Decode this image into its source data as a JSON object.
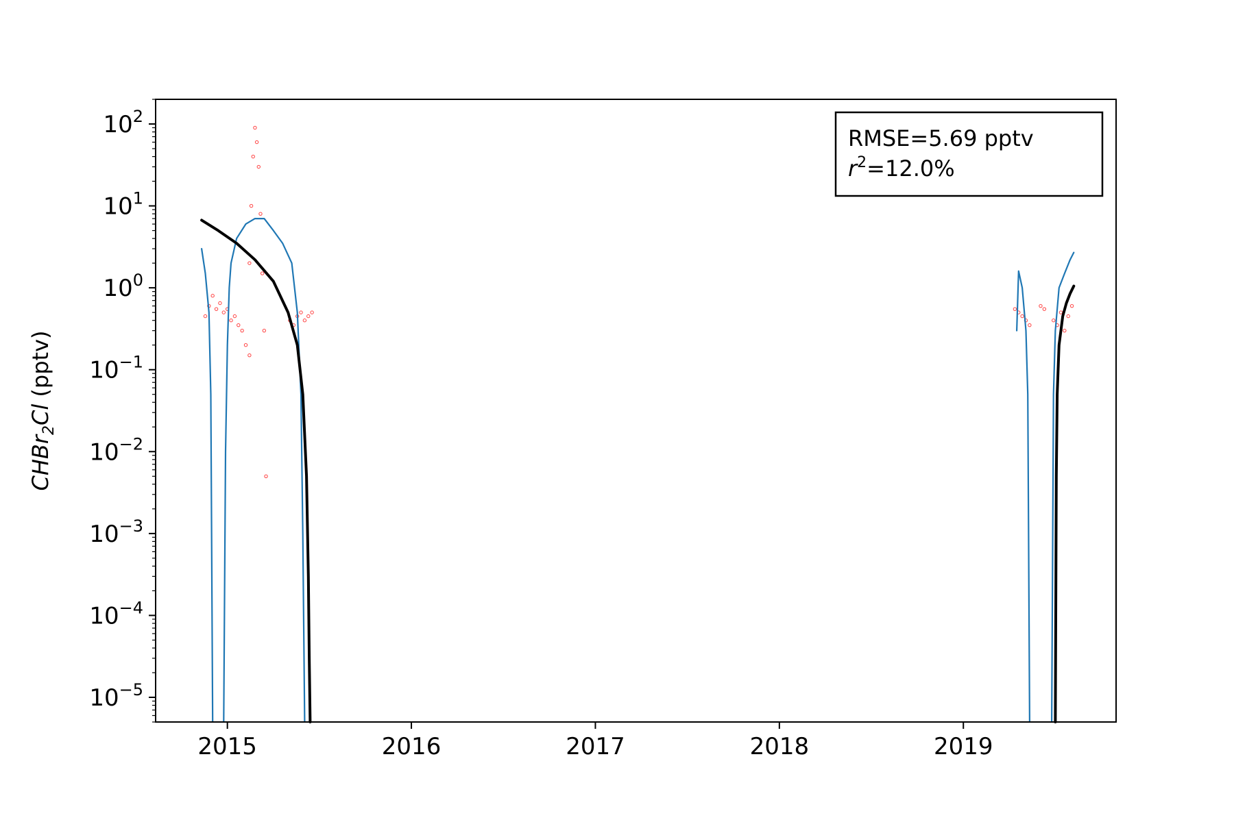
{
  "chart_data": {
    "type": "scatter",
    "title": "",
    "xlabel": "",
    "ylabel": "CHBr2Cl (pptv)",
    "ylabel_parts": {
      "prefix": "CHBr",
      "sub": "2",
      "suffix": "Cl",
      "unit": " (pptv)"
    },
    "x_axis": "decimal year",
    "xlim": [
      2014.61,
      2019.83
    ],
    "ylim": [
      5e-06,
      200
    ],
    "yscale": "log",
    "x_ticks": [
      2015,
      2016,
      2017,
      2018,
      2019
    ],
    "x_tick_labels": [
      "2015",
      "2016",
      "2017",
      "2018",
      "2019"
    ],
    "y_tick_exponents": [
      2,
      1,
      0,
      -1,
      -2,
      -3,
      -4,
      -5
    ],
    "y_tick_labels": [
      "10^2",
      "10^1",
      "10^0",
      "10^-1",
      "10^-2",
      "10^-3",
      "10^-4",
      "10^-5"
    ],
    "grid": false,
    "annotation": {
      "placement": "top-right",
      "rmse_text": "RMSE=5.69 pptv",
      "r2_prefix": "r",
      "r2_sup": "2",
      "r2_value": "=12.0%"
    },
    "series": [
      {
        "role": "observations",
        "marker": "hollow-circle",
        "color": "#ff0000",
        "segments": [
          {
            "x": [
              2014.88,
              2014.9,
              2014.92,
              2014.94,
              2014.96,
              2014.98,
              2015.0,
              2015.02,
              2015.04,
              2015.06,
              2015.08,
              2015.1,
              2015.12
            ],
            "y": [
              0.45,
              0.6,
              0.8,
              0.55,
              0.65,
              0.5,
              0.55,
              0.4,
              0.45,
              0.35,
              0.3,
              0.2,
              0.15
            ]
          },
          {
            "x": [
              2015.12,
              2015.13,
              2015.14,
              2015.15,
              2015.16,
              2015.17,
              2015.18,
              2015.19,
              2015.2,
              2015.21
            ],
            "y": [
              2,
              10,
              40,
              90,
              60,
              30,
              8,
              1.5,
              0.3,
              0.005
            ]
          },
          {
            "x": [
              2015.34,
              2015.36,
              2015.38,
              2015.4,
              2015.42,
              2015.44,
              2015.46
            ],
            "y": [
              0.4,
              0.35,
              0.45,
              0.5,
              0.4,
              0.45,
              0.5
            ]
          },
          {
            "x": [
              2019.28,
              2019.3,
              2019.32,
              2019.34,
              2019.36,
              2019.42,
              2019.44
            ],
            "y": [
              0.55,
              0.5,
              0.45,
              0.4,
              0.35,
              0.6,
              0.55
            ]
          },
          {
            "x": [
              2019.49,
              2019.51,
              2019.53,
              2019.55,
              2019.57,
              2019.59
            ],
            "y": [
              0.4,
              0.35,
              0.5,
              0.3,
              0.45,
              0.6
            ]
          }
        ]
      },
      {
        "role": "model",
        "marker": "line",
        "color": "#1f77b4",
        "segments": [
          {
            "x": [
              2014.86,
              2014.88,
              2014.9,
              2014.91,
              2014.92
            ],
            "y": [
              3,
              1.5,
              0.5,
              0.05,
              5e-06
            ]
          },
          {
            "x": [
              2014.98,
              2014.99,
              2015.0,
              2015.01,
              2015.02,
              2015.05,
              2015.1,
              2015.15,
              2015.2,
              2015.25,
              2015.3,
              2015.35,
              2015.38,
              2015.4,
              2015.41,
              2015.42
            ],
            "y": [
              5e-06,
              0.01,
              0.2,
              1,
              2,
              4,
              6,
              7,
              7,
              5,
              3.5,
              2,
              0.5,
              0.05,
              0.001,
              5e-06
            ]
          },
          {
            "x": [
              2019.29,
              2019.3,
              2019.32,
              2019.34,
              2019.35,
              2019.36
            ],
            "y": [
              0.3,
              1.6,
              1.0,
              0.3,
              0.05,
              5e-06
            ]
          },
          {
            "x": [
              2019.48,
              2019.49,
              2019.5,
              2019.52,
              2019.55,
              2019.58,
              2019.6
            ],
            "y": [
              5e-06,
              0.05,
              0.3,
              1,
              1.5,
              2.2,
              2.7
            ]
          }
        ]
      },
      {
        "role": "fit",
        "marker": "line",
        "color": "#000000",
        "segments": [
          {
            "x": [
              2014.86,
              2014.95,
              2015.05,
              2015.15,
              2015.25,
              2015.33,
              2015.38,
              2015.41,
              2015.43,
              2015.44,
              2015.445,
              2015.45
            ],
            "y": [
              6.7,
              5,
              3.5,
              2.2,
              1.2,
              0.5,
              0.2,
              0.05,
              0.005,
              0.0003,
              3e-05,
              5e-06
            ]
          },
          {
            "x": [
              2019.5,
              2019.505,
              2019.51,
              2019.52,
              2019.54,
              2019.56,
              2019.58,
              2019.6
            ],
            "y": [
              5e-06,
              0.005,
              0.05,
              0.2,
              0.45,
              0.65,
              0.85,
              1.05
            ]
          }
        ]
      }
    ]
  },
  "colors": {
    "observations": "#ff0000",
    "model": "#1f77b4",
    "fit": "#000000",
    "axes": "#000000"
  }
}
